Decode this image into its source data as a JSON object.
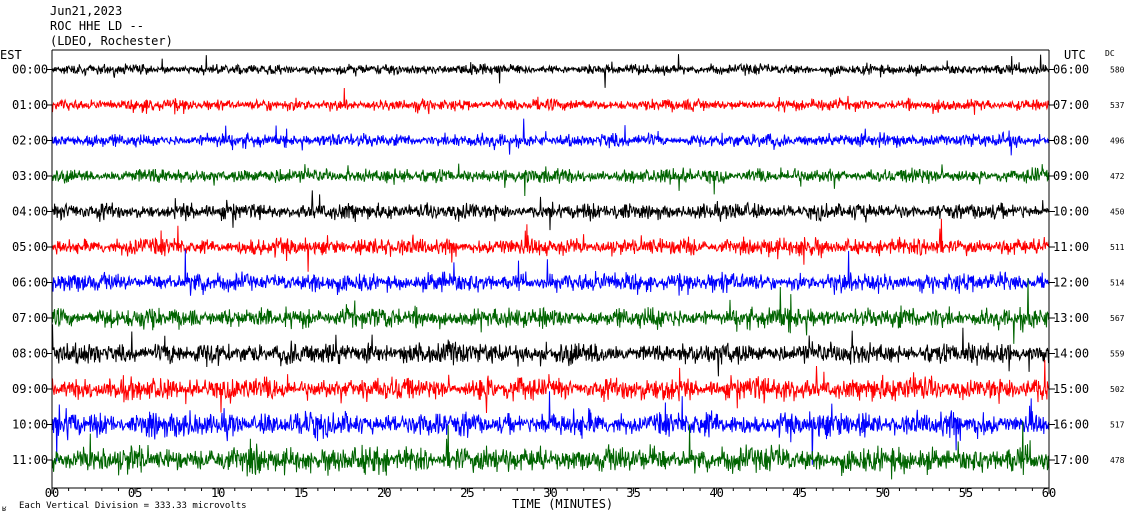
{
  "chart_data": {
    "type": "line",
    "title_lines": [
      "Jun21,2023",
      "ROC HHE LD --",
      "(LDEO, Rochester)"
    ],
    "left_axis_label": "EST",
    "right_axis_label": "UTC",
    "dc_label": "DC",
    "xlabel": "TIME (MINUTES)",
    "xlim": [
      0,
      60
    ],
    "x_ticks": [
      "00",
      "05",
      "10",
      "15",
      "20",
      "25",
      "30",
      "35",
      "40",
      "45",
      "50",
      "55",
      "60"
    ],
    "footnote": "Each Vertical Division =  333.33 microvolts",
    "corner_mark": "ʁ",
    "trace_colors": [
      "#000000",
      "#ff0000",
      "#0000ff",
      "#006400"
    ],
    "rows": [
      {
        "est": "00:00",
        "utc": "06:00",
        "dc": "580"
      },
      {
        "est": "01:00",
        "utc": "07:00",
        "dc": "537"
      },
      {
        "est": "02:00",
        "utc": "08:00",
        "dc": "496"
      },
      {
        "est": "03:00",
        "utc": "09:00",
        "dc": "472"
      },
      {
        "est": "04:00",
        "utc": "10:00",
        "dc": "450"
      },
      {
        "est": "05:00",
        "utc": "11:00",
        "dc": "511"
      },
      {
        "est": "06:00",
        "utc": "12:00",
        "dc": "514"
      },
      {
        "est": "07:00",
        "utc": "13:00",
        "dc": "567"
      },
      {
        "est": "08:00",
        "utc": "14:00",
        "dc": "559"
      },
      {
        "est": "09:00",
        "utc": "15:00",
        "dc": "502"
      },
      {
        "est": "10:00",
        "utc": "16:00",
        "dc": "517"
      },
      {
        "est": "11:00",
        "utc": "17:00",
        "dc": "478"
      }
    ]
  }
}
